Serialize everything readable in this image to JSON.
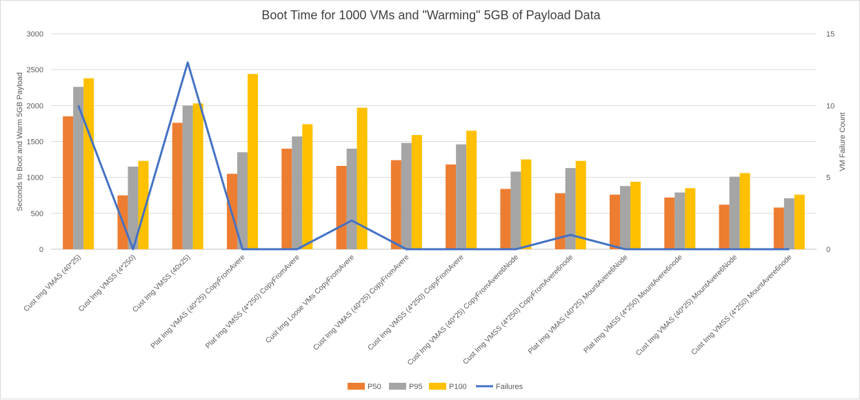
{
  "chart_data": {
    "type": "bar",
    "title": "Boot Time for 1000 VMs and \"Warming\" 5GB of Payload Data",
    "ylabel": "Seconds to Boot and Warm 5GB Payload",
    "y2label": "VM Failure Count",
    "ylim": [
      0,
      3000
    ],
    "y2lim": [
      0,
      15
    ],
    "yticks": [
      "0",
      "500",
      "1000",
      "1500",
      "2000",
      "2500",
      "3000"
    ],
    "y2ticks": [
      "0",
      "5",
      "10",
      "15"
    ],
    "grid": true,
    "legend_position": "bottom",
    "categories": [
      "Cust Img VMAS (40*25)",
      "Cust Img VMSS (4*250)",
      "Cust Img VMSS (40x25)",
      "Plat Img VMAS (40*25) CopyFromAvere",
      "Plat Img VMSS  (4*250) CopyFromAvere",
      "Cust Img Loose VMs CopyFromAvere",
      "Cust Img VMAS (40*25) CopyFromAvere",
      "Cust Img VMSS (4*250) CopyFromAvere",
      "Cust Img VMAS (40*25) CopyFromAvere6Node",
      "Cust Img VMSS (4*250) CopyFromAvere6node",
      "Plat Img VMAS (40*25) MountAvere6Node",
      "Plat Img VMSS (4*250) MountAvere6node",
      "Cust Img VMAS (40*25) MountAvere6Node",
      "Cust Img VMSS (4*250) MountAvere6node"
    ],
    "series": [
      {
        "name": "P50",
        "type": "bar",
        "axis": "left",
        "color": "#ed7d31",
        "values": [
          1850,
          750,
          1760,
          1050,
          1400,
          1160,
          1240,
          1180,
          840,
          780,
          760,
          720,
          620,
          580
        ]
      },
      {
        "name": "P95",
        "type": "bar",
        "axis": "left",
        "color": "#a5a5a5",
        "values": [
          2260,
          1150,
          2000,
          1350,
          1570,
          1400,
          1480,
          1460,
          1080,
          1130,
          880,
          790,
          1010,
          710
        ]
      },
      {
        "name": "P100",
        "type": "bar",
        "axis": "left",
        "color": "#ffc000",
        "values": [
          2380,
          1230,
          2030,
          2440,
          1740,
          1970,
          1590,
          1650,
          1250,
          1230,
          940,
          850,
          1060,
          760
        ]
      },
      {
        "name": "Failures",
        "type": "line",
        "axis": "right",
        "color": "#4472c4",
        "values": [
          10,
          0,
          13,
          0,
          0,
          2,
          0,
          0,
          0,
          1,
          0,
          0,
          0,
          0
        ]
      }
    ]
  }
}
